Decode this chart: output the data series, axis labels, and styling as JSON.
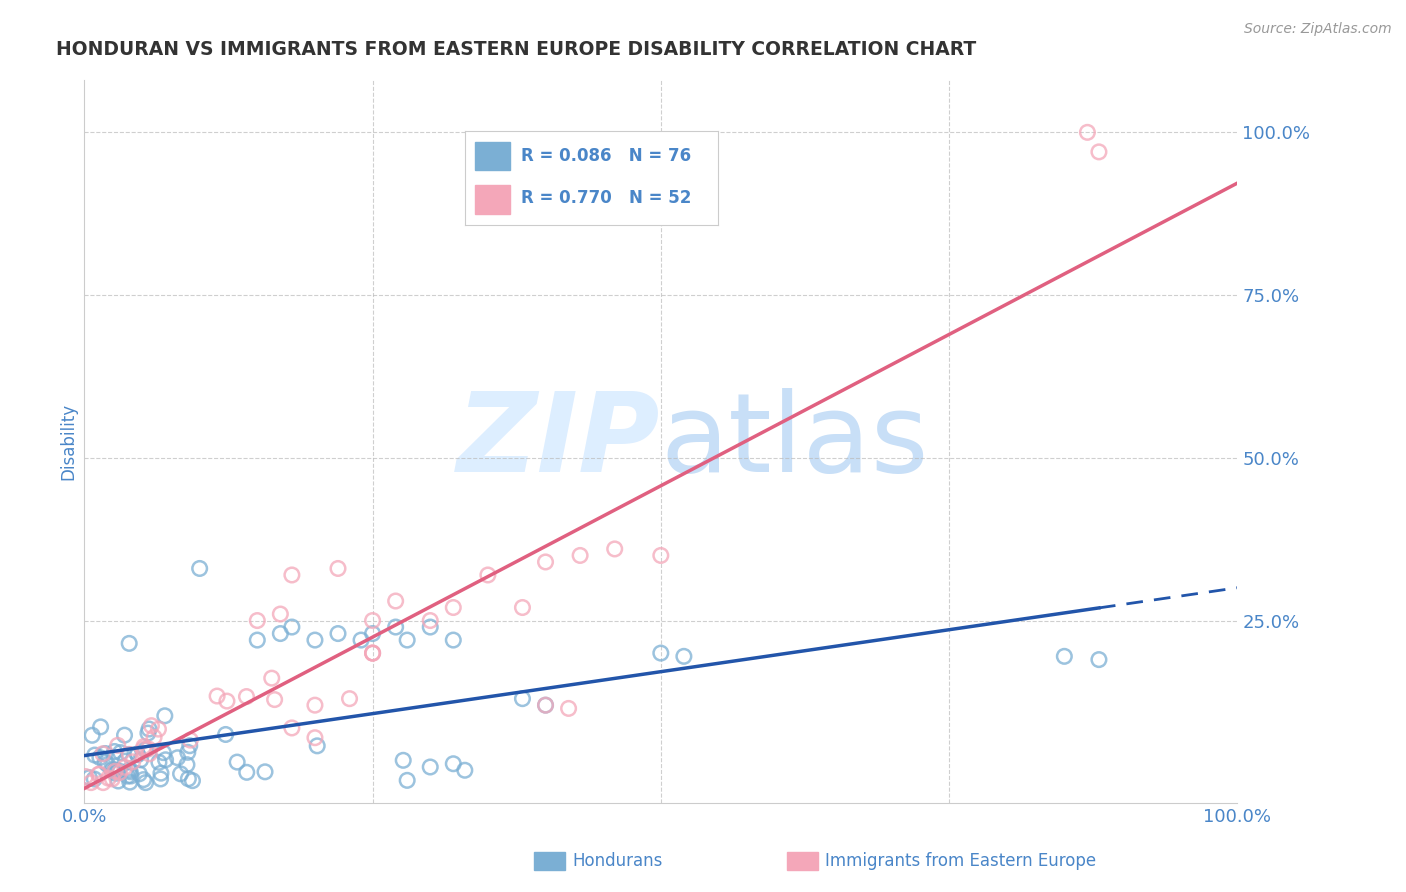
{
  "title": "HONDURAN VS IMMIGRANTS FROM EASTERN EUROPE DISABILITY CORRELATION CHART",
  "source_text": "Source: ZipAtlas.com",
  "ylabel": "Disability",
  "blue_R": 0.086,
  "blue_N": 76,
  "pink_R": 0.77,
  "pink_N": 52,
  "blue_scatter_color": "#7bafd4",
  "pink_scatter_color": "#f4a7b9",
  "blue_line_color": "#2255aa",
  "pink_line_color": "#e06080",
  "background_color": "#ffffff",
  "grid_color": "#bbbbbb",
  "title_color": "#333333",
  "axis_label_color": "#4a86c8",
  "watermark_color": "#ddeeff",
  "legend_text_color": "#4a86c8",
  "legend_box_color": "#f5f5f5",
  "bottom_legend_label1": "Hondurans",
  "bottom_legend_label2": "Immigrants from Eastern Europe"
}
